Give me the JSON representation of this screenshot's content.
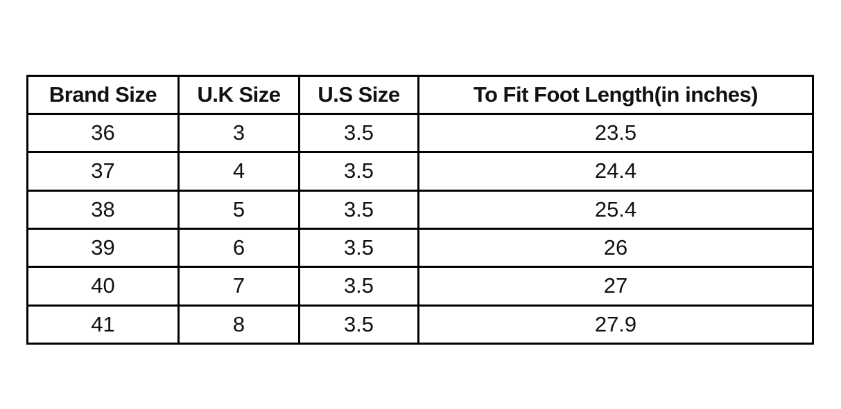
{
  "table": {
    "header": [
      "Brand Size",
      "U.K Size",
      "U.S Size",
      "To Fit Foot Length(in inches)"
    ],
    "rows": [
      [
        "36",
        "3",
        "3.5",
        "23.5"
      ],
      [
        "37",
        "4",
        "3.5",
        "24.4"
      ],
      [
        "38",
        "5",
        "3.5",
        "25.4"
      ],
      [
        "39",
        "6",
        "3.5",
        "26"
      ],
      [
        "40",
        "7",
        "3.5",
        "27"
      ],
      [
        "41",
        "8",
        "3.5",
        "27.9"
      ]
    ]
  }
}
